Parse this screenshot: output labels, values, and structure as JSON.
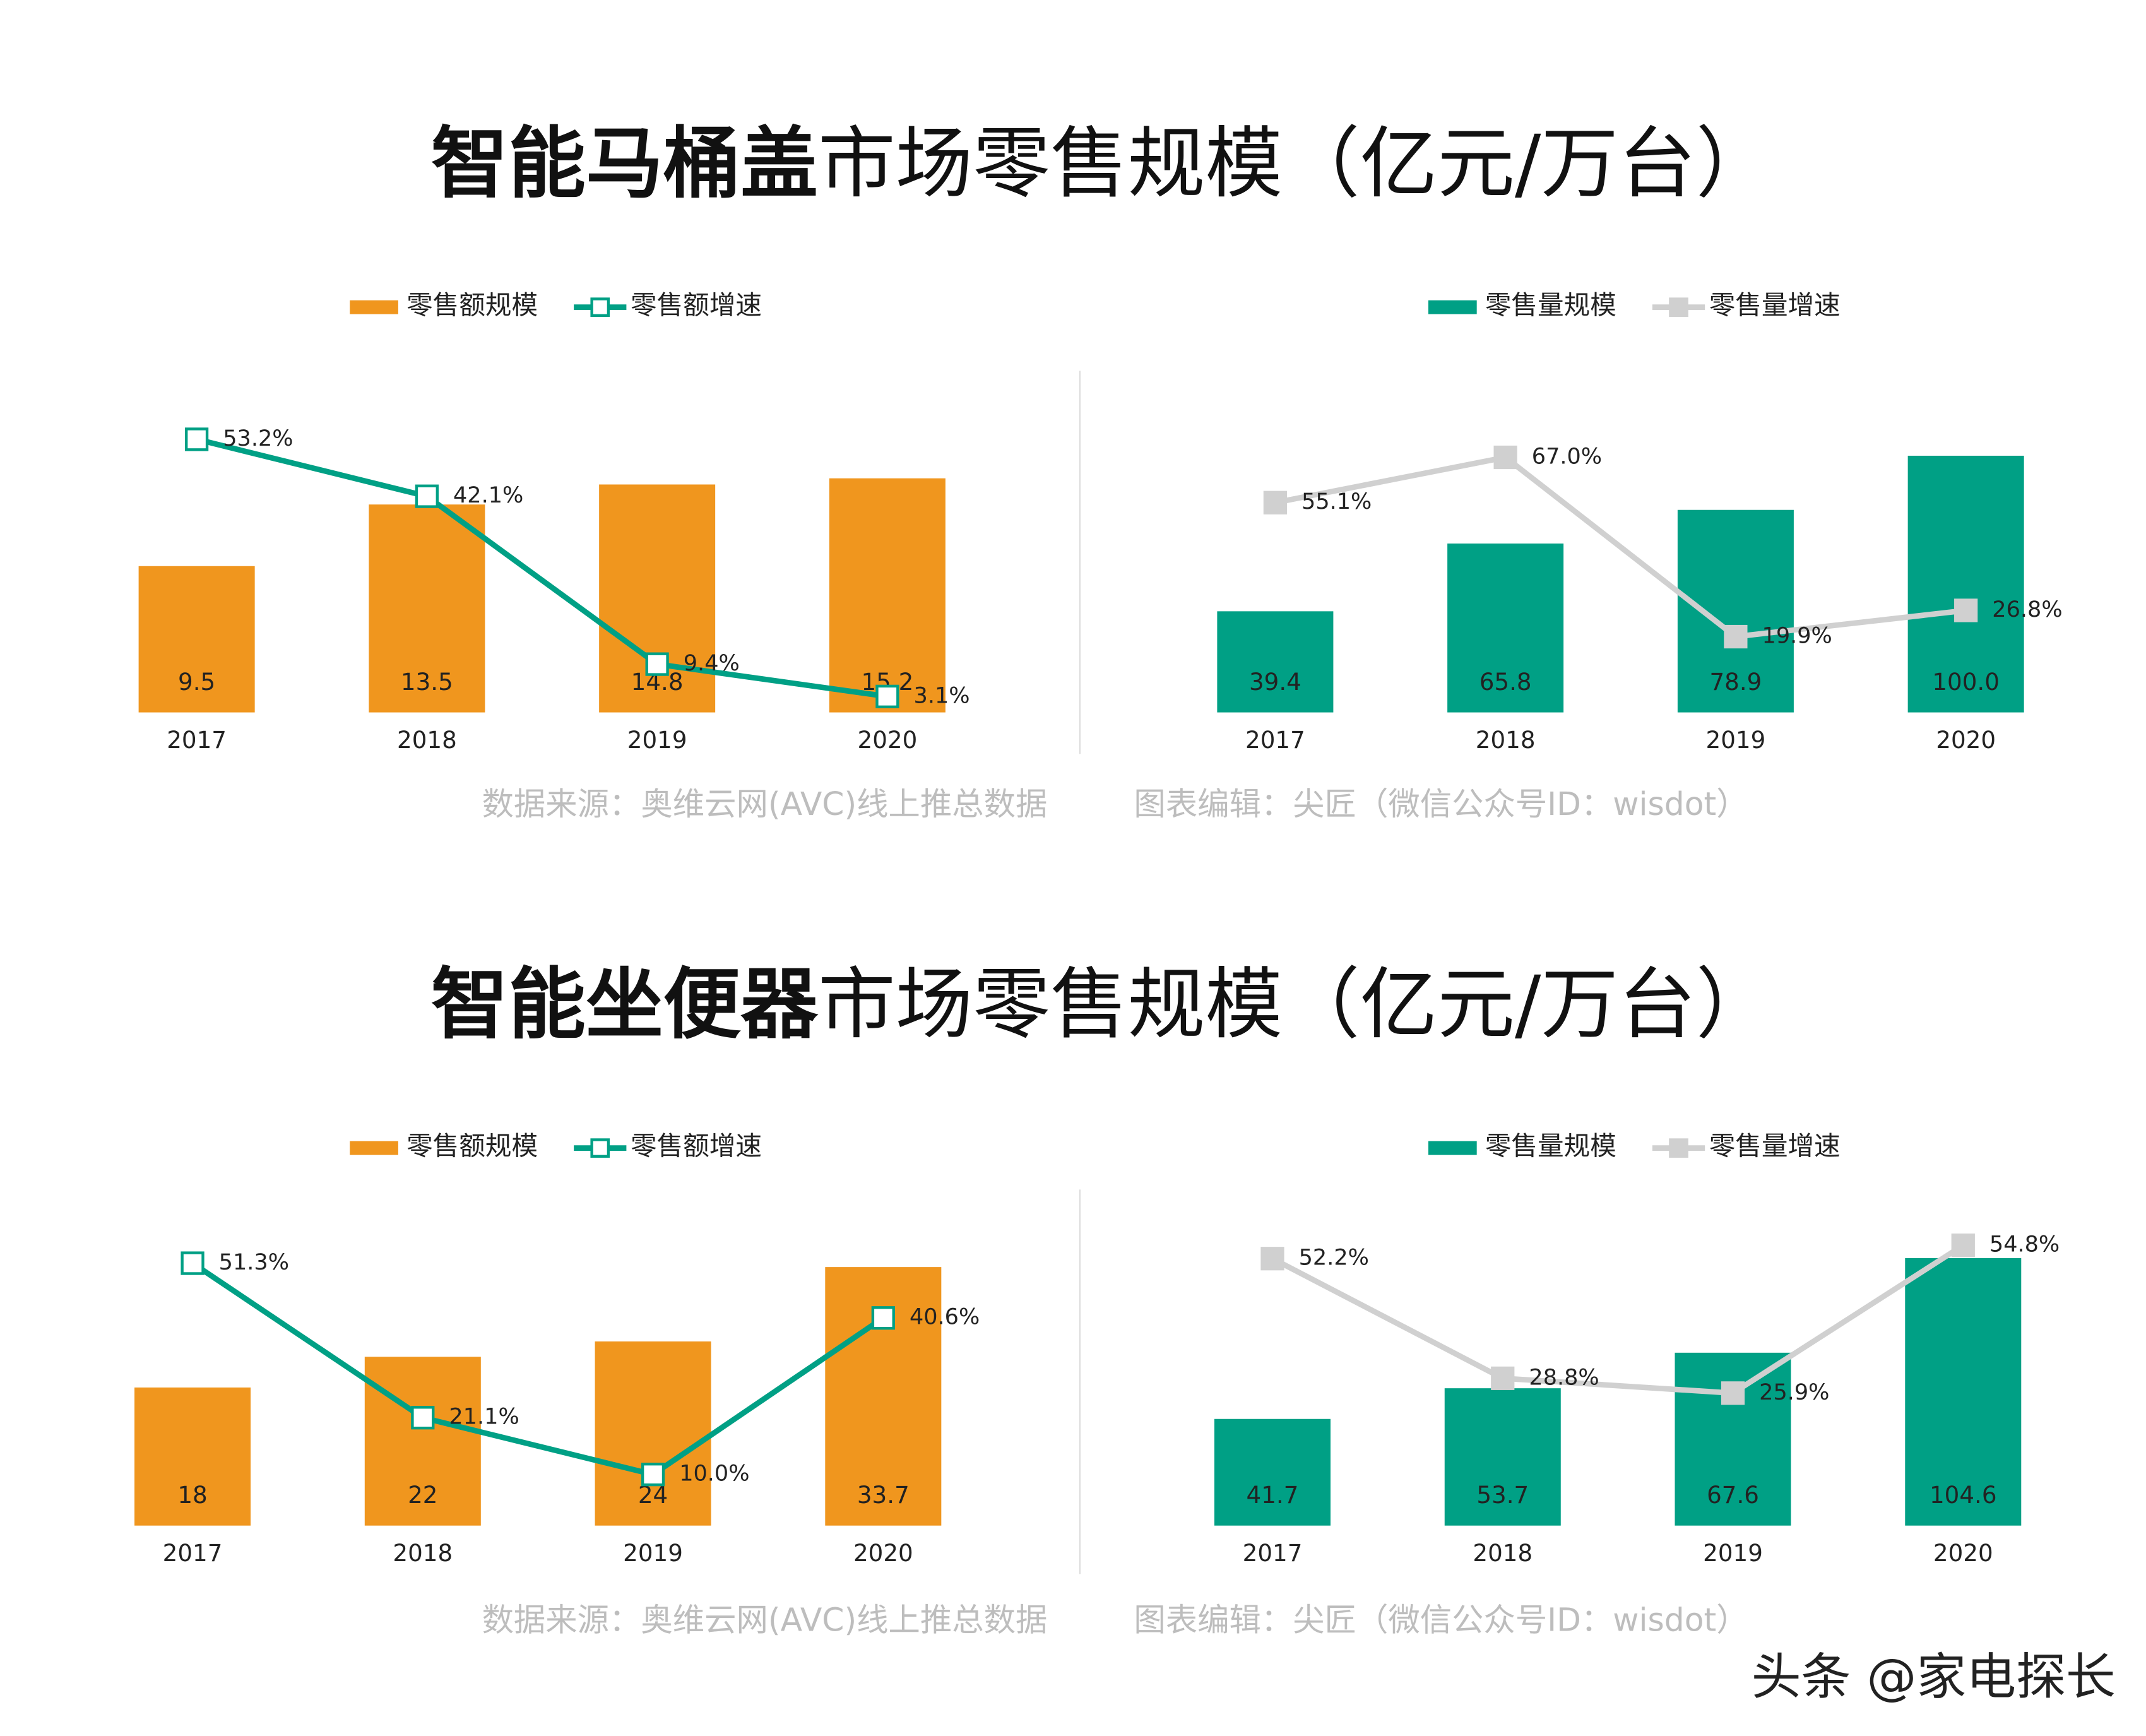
{
  "sections": [
    {
      "title_bold": "智能马桶盖",
      "title_rest": "市场零售规模（亿元/万台）",
      "source": "数据来源：奥维云网(AVC)线上推总数据",
      "editor": "图表编辑：尖匠（微信公众号ID：wisdot）"
    },
    {
      "title_bold": "智能坐便器",
      "title_rest": "市场零售规模（亿元/万台）",
      "source": "数据来源：奥维云网(AVC)线上推总数据",
      "editor": "图表编辑：尖匠（微信公众号ID：wisdot）"
    }
  ],
  "watermark": "头条 @家电探长",
  "chart_data": [
    {
      "type": "bar",
      "categories": [
        "2017",
        "2018",
        "2019",
        "2020"
      ],
      "ylim": [
        0,
        22
      ],
      "y2lim": [
        0,
        66
      ],
      "series": [
        {
          "name": "零售额规模",
          "type": "bar",
          "color": "#f0961e",
          "values": [
            9.5,
            13.5,
            14.8,
            15.2
          ],
          "value_labels": [
            "9.5",
            "13.5",
            "14.8",
            "15.2"
          ]
        },
        {
          "name": "零售额增速",
          "type": "line",
          "axis": "y2",
          "color": "#00a085",
          "marker": "hollow",
          "values": [
            53.2,
            42.1,
            9.4,
            3.1
          ],
          "value_labels": [
            "53.2%",
            "42.1%",
            "9.4%",
            "3.1%"
          ]
        }
      ]
    },
    {
      "type": "bar",
      "categories": [
        "2017",
        "2018",
        "2019",
        "2020"
      ],
      "ylim": [
        0,
        132
      ],
      "y2lim": [
        0,
        89
      ],
      "series": [
        {
          "name": "零售量规模",
          "type": "bar",
          "color": "#00a085",
          "values": [
            39.4,
            65.8,
            78.9,
            100
          ],
          "value_labels": [
            "39.4",
            "65.8",
            "78.9",
            "100.0"
          ]
        },
        {
          "name": "零售量增速",
          "type": "line",
          "axis": "y2",
          "color": "#d0d0d0",
          "marker": "filled",
          "values": [
            55.1,
            67,
            19.9,
            26.8
          ],
          "value_labels": [
            "55.1%",
            "67.0%",
            "19.9%",
            "26.8%"
          ]
        }
      ]
    },
    {
      "type": "bar",
      "categories": [
        "2017",
        "2018",
        "2019",
        "2020"
      ],
      "ylim": [
        0,
        42
      ],
      "y2lim": [
        0,
        63
      ],
      "series": [
        {
          "name": "零售额规模",
          "type": "bar",
          "color": "#f0961e",
          "values": [
            18,
            22,
            24,
            33.7
          ],
          "value_labels": [
            "18",
            "22",
            "24",
            "33.7"
          ]
        },
        {
          "name": "零售额增速",
          "type": "line",
          "axis": "y2",
          "color": "#00a085",
          "marker": "hollow",
          "values": [
            51.3,
            21.1,
            10,
            40.6
          ],
          "value_labels": [
            "51.3%",
            "21.1%",
            "10.0%",
            "40.6%"
          ]
        }
      ]
    },
    {
      "type": "bar",
      "categories": [
        "2017",
        "2018",
        "2019",
        "2020"
      ],
      "ylim": [
        0,
        126
      ],
      "y2lim": [
        0,
        63
      ],
      "series": [
        {
          "name": "零售量规模",
          "type": "bar",
          "color": "#00a085",
          "values": [
            41.7,
            53.7,
            67.6,
            104.6
          ],
          "value_labels": [
            "41.7",
            "53.7",
            "67.6",
            "104.6"
          ]
        },
        {
          "name": "零售量增速",
          "type": "line",
          "axis": "y2",
          "color": "#d0d0d0",
          "marker": "filled",
          "values": [
            52.2,
            28.8,
            25.9,
            54.8
          ],
          "value_labels": [
            "52.2%",
            "28.8%",
            "25.9%",
            "54.8%"
          ]
        }
      ]
    }
  ]
}
